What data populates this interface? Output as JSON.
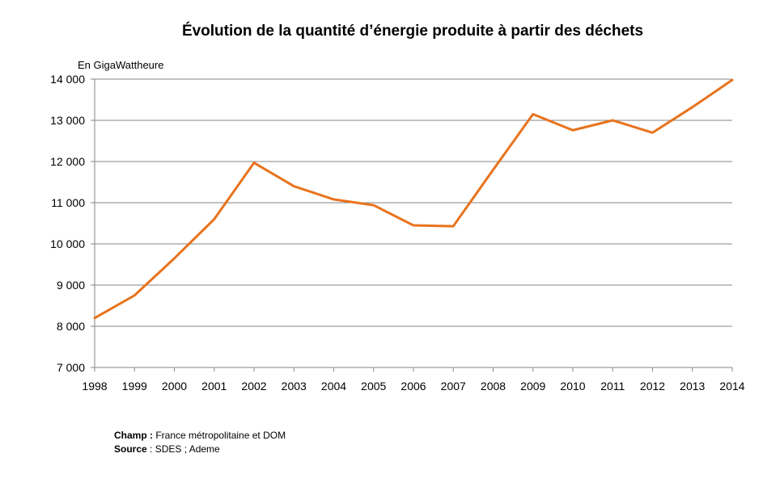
{
  "chart_data": {
    "type": "line",
    "title": "Évolution de la quantité d’énergie produite à partir des déchets",
    "ylabel": "En GigaWattheure",
    "xlabel": "",
    "x": [
      "1998",
      "1999",
      "2000",
      "2001",
      "2002",
      "2003",
      "2004",
      "2005",
      "2006",
      "2007",
      "2008",
      "2009",
      "2010",
      "2011",
      "2012",
      "2013",
      "2014"
    ],
    "series": [
      {
        "name": "Énergie produite à partir des déchets",
        "color": "#e8731d",
        "values": [
          8200,
          8750,
          9650,
          10600,
          11970,
          11400,
          11080,
          10940,
          10450,
          10430,
          11800,
          13150,
          12760,
          13000,
          12700,
          13320,
          13980
        ]
      }
    ],
    "ylim": [
      7000,
      14000
    ],
    "yticks": [
      7000,
      8000,
      9000,
      10000,
      11000,
      12000,
      13000,
      14000
    ],
    "ytick_labels": [
      "7 000",
      "8 000",
      "9 000",
      "10 000",
      "11 000",
      "12 000",
      "13 000",
      "14 000"
    ],
    "grid": true,
    "legend": "none"
  },
  "footnote": {
    "champ_label": "Champ :",
    "champ_text": " France métropolitaine et DOM",
    "source_label": "Source",
    "source_text": " : SDES ; Ademe"
  }
}
